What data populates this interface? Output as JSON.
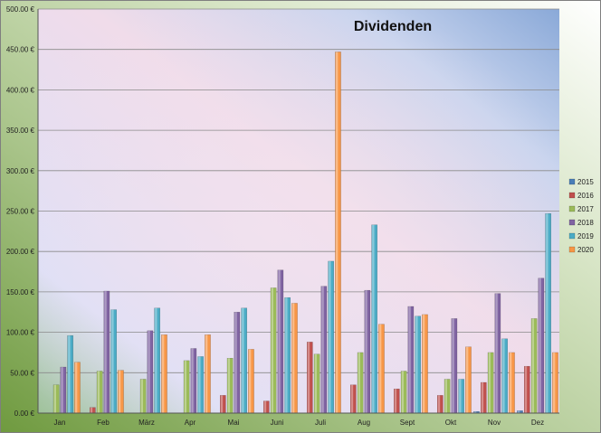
{
  "chart_data": {
    "type": "bar",
    "title": "Dividenden",
    "xlabel": "",
    "ylabel": "",
    "ylim": [
      0,
      500
    ],
    "yticks": [
      0,
      50,
      100,
      150,
      200,
      250,
      300,
      350,
      400,
      450,
      500
    ],
    "ytick_labels": [
      "0.00 €",
      "50.00 €",
      "100.00 €",
      "150.00 €",
      "200.00 €",
      "250.00 €",
      "300.00 €",
      "350.00 €",
      "400.00 €",
      "450.00 €",
      "500.00 €"
    ],
    "grid": true,
    "legend_position": "right",
    "categories": [
      "Jan",
      "Feb",
      "März",
      "Apr",
      "Mai",
      "Juni",
      "Juli",
      "Aug",
      "Sept",
      "Okt",
      "Nov",
      "Dez"
    ],
    "series": [
      {
        "name": "2015",
        "color": "#4a7eb8",
        "values": [
          0,
          0,
          0,
          0,
          0,
          0,
          0,
          0,
          0,
          0,
          2,
          3
        ]
      },
      {
        "name": "2016",
        "color": "#c0504d",
        "values": [
          0,
          7,
          0,
          0,
          22,
          15,
          88,
          35,
          30,
          22,
          38,
          58
        ]
      },
      {
        "name": "2017",
        "color": "#9bbb59",
        "values": [
          35,
          52,
          42,
          65,
          68,
          155,
          73,
          75,
          52,
          42,
          75,
          117
        ]
      },
      {
        "name": "2018",
        "color": "#8064a2",
        "values": [
          57,
          151,
          102,
          80,
          125,
          177,
          157,
          152,
          132,
          117,
          148,
          167
        ]
      },
      {
        "name": "2019",
        "color": "#4bacc6",
        "values": [
          96,
          128,
          130,
          70,
          130,
          143,
          188,
          233,
          120,
          42,
          92,
          247
        ]
      },
      {
        "name": "2020",
        "color": "#f79646",
        "values": [
          63,
          53,
          97,
          97,
          79,
          136,
          447,
          110,
          122,
          82,
          75,
          75
        ]
      }
    ]
  }
}
